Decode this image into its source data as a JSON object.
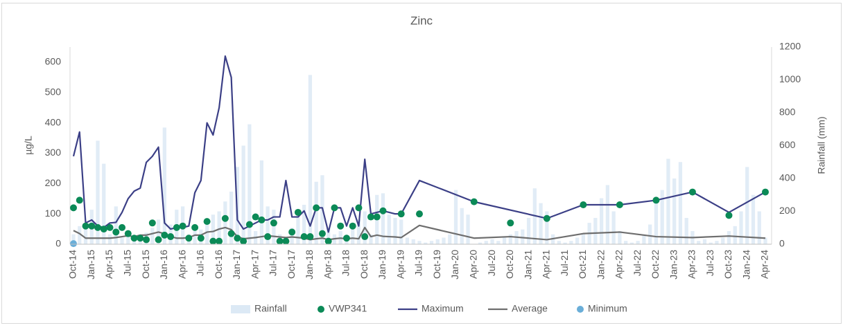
{
  "chart_data": {
    "type": "combo",
    "title": "Zinc",
    "y_label": "µg/L",
    "y2_label": "Rainfall (mm)",
    "categories": [
      "Oct-14",
      null,
      null,
      "Jan-15",
      null,
      null,
      "Apr-15",
      null,
      null,
      "Jul-15",
      null,
      null,
      "Oct-15",
      null,
      null,
      "Jan-16",
      null,
      null,
      "Apr-16",
      null,
      null,
      "Jul-16",
      null,
      null,
      "Oct-16",
      null,
      null,
      "Jan-17",
      null,
      null,
      "Apr-17",
      null,
      null,
      "Jul-17",
      null,
      null,
      "Oct-17",
      null,
      null,
      "Jan-18",
      null,
      null,
      "Apr-18",
      null,
      null,
      "Jul-18",
      null,
      null,
      "Oct-18",
      null,
      null,
      "Jan-19",
      null,
      null,
      "Apr-19",
      null,
      null,
      "Jul-19",
      null,
      null,
      "Oct-19",
      null,
      null,
      "Jan-20",
      null,
      null,
      "Apr-20",
      null,
      null,
      "Jul-20",
      null,
      null,
      "Oct-20",
      null,
      null,
      "Jan-21",
      null,
      null,
      "Apr-21",
      null,
      null,
      "Jul-21",
      null,
      null,
      "Oct-21",
      null,
      null,
      "Jan-22",
      null,
      null,
      "Apr-22",
      null,
      null,
      "Jul-22",
      null,
      null,
      "Oct-22",
      null,
      null,
      "Jan-23",
      null,
      null,
      "Apr-23",
      null,
      null,
      "Jul-23",
      null,
      null,
      "Oct-23",
      null,
      null,
      "Jan-24",
      null,
      null,
      "Apr-24"
    ],
    "ylim": [
      0,
      650
    ],
    "yticks": [
      0,
      100,
      200,
      300,
      400,
      500,
      600
    ],
    "y2lim": [
      0,
      1200
    ],
    "y2ticks": [
      0,
      200,
      400,
      600,
      800,
      1000,
      1200
    ],
    "connect_gaps": true,
    "grid": false,
    "series": [
      {
        "name": "Rainfall",
        "type": "bar",
        "axis": "y2",
        "color": "#dce9f5",
        "values": [
          60,
          110,
          130,
          210,
          630,
          490,
          60,
          230,
          40,
          80,
          30,
          20,
          70,
          100,
          150,
          710,
          120,
          210,
          230,
          60,
          80,
          90,
          150,
          180,
          200,
          260,
          320,
          470,
          600,
          730,
          80,
          510,
          230,
          210,
          60,
          40,
          100,
          180,
          240,
          1030,
          380,
          420,
          100,
          60,
          80,
          40,
          100,
          150,
          200,
          60,
          300,
          310,
          180,
          160,
          150,
          40,
          30,
          20,
          10,
          20,
          30,
          40,
          60,
          330,
          220,
          180,
          0,
          10,
          20,
          30,
          20,
          40,
          60,
          80,
          90,
          160,
          340,
          250,
          200,
          60,
          20,
          10,
          20,
          40,
          60,
          130,
          160,
          280,
          360,
          200,
          80,
          20,
          10,
          20,
          60,
          120,
          250,
          330,
          520,
          400,
          500,
          160,
          80,
          20,
          30,
          10,
          20,
          40,
          80,
          110,
          200,
          470,
          300,
          200,
          40
        ]
      },
      {
        "name": "VWP341",
        "type": "scatter",
        "color": "#0b8a57",
        "values": [
          120,
          145,
          60,
          60,
          55,
          50,
          55,
          40,
          55,
          35,
          20,
          20,
          15,
          70,
          15,
          30,
          25,
          55,
          60,
          20,
          55,
          20,
          75,
          10,
          10,
          85,
          35,
          20,
          10,
          65,
          90,
          80,
          25,
          70,
          10,
          10,
          40,
          105,
          25,
          25,
          120,
          35,
          10,
          120,
          60,
          20,
          60,
          120,
          25,
          90,
          90,
          110,
          null,
          null,
          100,
          null,
          null,
          100,
          null,
          null,
          null,
          null,
          null,
          null,
          null,
          null,
          140,
          null,
          null,
          null,
          null,
          null,
          70,
          null,
          null,
          null,
          null,
          null,
          85,
          null,
          null,
          null,
          null,
          null,
          130,
          null,
          null,
          null,
          null,
          null,
          130,
          null,
          null,
          null,
          null,
          null,
          145,
          null,
          null,
          null,
          null,
          null,
          172,
          null,
          null,
          null,
          null,
          null,
          95,
          null,
          null,
          null,
          null,
          null,
          172
        ]
      },
      {
        "name": "Maximum",
        "type": "line",
        "color": "#3b3f86",
        "values": [
          290,
          370,
          70,
          80,
          60,
          55,
          70,
          72,
          105,
          150,
          175,
          185,
          270,
          290,
          320,
          70,
          50,
          55,
          55,
          60,
          170,
          210,
          400,
          360,
          450,
          620,
          550,
          80,
          50,
          60,
          70,
          80,
          80,
          90,
          90,
          210,
          90,
          90,
          110,
          60,
          120,
          120,
          40,
          120,
          120,
          60,
          120,
          60,
          280,
          100,
          105,
          110,
          105,
          100,
          100,
          null,
          null,
          210,
          null,
          null,
          null,
          null,
          null,
          null,
          null,
          null,
          140,
          null,
          null,
          null,
          null,
          null,
          null,
          null,
          null,
          null,
          null,
          null,
          85,
          null,
          null,
          null,
          null,
          null,
          130,
          null,
          null,
          null,
          null,
          null,
          130,
          null,
          null,
          null,
          null,
          null,
          145,
          null,
          null,
          null,
          null,
          null,
          172,
          null,
          null,
          null,
          null,
          null,
          105,
          null,
          null,
          null,
          null,
          null,
          172
        ]
      },
      {
        "name": "Average",
        "type": "line",
        "color": "#6e6e6e",
        "values": [
          45,
          35,
          20,
          20,
          20,
          20,
          20,
          22,
          25,
          28,
          25,
          30,
          30,
          35,
          40,
          35,
          25,
          20,
          20,
          22,
          30,
          30,
          40,
          42,
          50,
          55,
          48,
          25,
          18,
          20,
          22,
          25,
          28,
          26,
          24,
          22,
          24,
          22,
          20,
          15,
          18,
          20,
          15,
          18,
          20,
          18,
          20,
          18,
          55,
          25,
          30,
          26,
          25,
          24,
          22,
          null,
          null,
          62,
          null,
          null,
          null,
          null,
          null,
          null,
          null,
          null,
          20,
          null,
          null,
          null,
          null,
          null,
          25,
          null,
          null,
          null,
          null,
          null,
          15,
          null,
          null,
          null,
          null,
          null,
          35,
          null,
          null,
          null,
          null,
          null,
          40,
          null,
          null,
          null,
          null,
          null,
          25,
          null,
          null,
          null,
          null,
          null,
          22,
          null,
          null,
          null,
          null,
          null,
          27,
          null,
          null,
          null,
          null,
          null,
          20
        ]
      },
      {
        "name": "Minimum",
        "type": "scatter",
        "color": "#6aaed8",
        "values": [
          2,
          null,
          null,
          null,
          null,
          null,
          null,
          null,
          null,
          null,
          null,
          null,
          null,
          null,
          null,
          null,
          null,
          null,
          null,
          null,
          null,
          null,
          null,
          null,
          null,
          null,
          null,
          null,
          null,
          null,
          null,
          null,
          null,
          null,
          null,
          null,
          null,
          null,
          null,
          null,
          null,
          null,
          null,
          null,
          null,
          null,
          null,
          null,
          null,
          null,
          null,
          null,
          null,
          null,
          null,
          null,
          null,
          null,
          null,
          null,
          null,
          null,
          null,
          null,
          null,
          null,
          null,
          null,
          null,
          null,
          null,
          null,
          null,
          null,
          null,
          null,
          null,
          null,
          null,
          null,
          null,
          null,
          null,
          null,
          null,
          null,
          null,
          null,
          null,
          null,
          null,
          null,
          null,
          null,
          null,
          null,
          null,
          null,
          null,
          null,
          null,
          null,
          null,
          null,
          null,
          null,
          null,
          null,
          null,
          null,
          null,
          null,
          null,
          null,
          null
        ]
      }
    ]
  }
}
